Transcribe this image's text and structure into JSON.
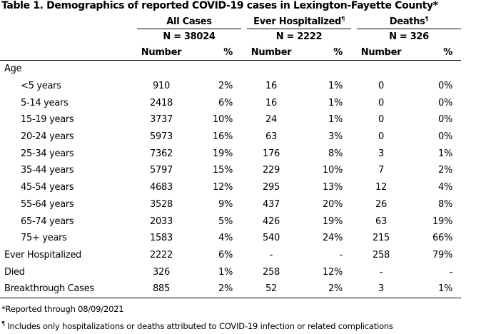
{
  "title": "Table 1. Demographics of reported COVID-19 cases in Lexington-Fayette County*",
  "groups": [
    {
      "name": "All Cases",
      "mark": "",
      "n": "N = 38024"
    },
    {
      "name": "Ever Hospitalized",
      "mark": "¶",
      "n": "N = 2222"
    },
    {
      "name": "Deaths",
      "mark": "¶",
      "n": "N = 326"
    }
  ],
  "col_number": "Number",
  "col_pct": "%",
  "section_age": "Age",
  "rows": [
    {
      "label": "<5 years",
      "v": [
        "910",
        "2%",
        "16",
        "1%",
        "0",
        "0%"
      ]
    },
    {
      "label": "5-14 years",
      "v": [
        "2418",
        "6%",
        "16",
        "1%",
        "0",
        "0%"
      ]
    },
    {
      "label": "15-19 years",
      "v": [
        "3737",
        "10%",
        "24",
        "1%",
        "0",
        "0%"
      ]
    },
    {
      "label": "20-24 years",
      "v": [
        "5973",
        "16%",
        "63",
        "3%",
        "0",
        "0%"
      ]
    },
    {
      "label": "25-34 years",
      "v": [
        "7362",
        "19%",
        "176",
        "8%",
        "3",
        "1%"
      ]
    },
    {
      "label": "35-44 years",
      "v": [
        "5797",
        "15%",
        "229",
        "10%",
        "7",
        "2%"
      ]
    },
    {
      "label": "45-54 years",
      "v": [
        "4683",
        "12%",
        "295",
        "13%",
        "12",
        "4%"
      ]
    },
    {
      "label": "55-64 years",
      "v": [
        "3528",
        "9%",
        "437",
        "20%",
        "26",
        "8%"
      ]
    },
    {
      "label": "65-74 years",
      "v": [
        "2033",
        "5%",
        "426",
        "19%",
        "63",
        "19%"
      ]
    },
    {
      "label": "75+ years",
      "v": [
        "1583",
        "4%",
        "540",
        "24%",
        "215",
        "66%"
      ]
    }
  ],
  "other_rows": [
    {
      "label": "Ever Hospitalized",
      "v": [
        "2222",
        "6%",
        "-",
        "-",
        "258",
        "79%"
      ]
    },
    {
      "label": "Died",
      "v": [
        "326",
        "1%",
        "258",
        "12%",
        "-",
        "-"
      ]
    },
    {
      "label": "Breakthrough Cases",
      "v": [
        "885",
        "2%",
        "52",
        "2%",
        "3",
        "1%"
      ]
    }
  ],
  "footnotes": {
    "reported": "*Reported through 08/09/2021",
    "includes_mark": "¶",
    "includes": " Includes only hospitalizations or deaths attributed to COVID-19 infection or related complications"
  }
}
